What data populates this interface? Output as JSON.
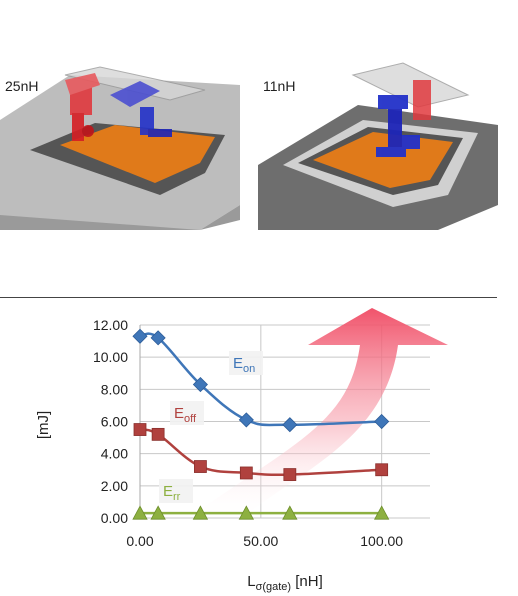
{
  "figure": {
    "left_label": "25nH",
    "right_label": "11nH"
  },
  "chart_data": {
    "type": "line",
    "xlabel_main": "L",
    "xlabel_sub": "σ(gate)",
    "xlabel_unit": " [nH]",
    "ylabel": "[mJ]",
    "xlim": [
      0,
      120
    ],
    "ylim": [
      0,
      12
    ],
    "x_ticks": [
      "0.00",
      "50.00",
      "100.00"
    ],
    "y_ticks": [
      "0.00",
      "2.00",
      "4.00",
      "6.00",
      "8.00",
      "10.00",
      "12.00"
    ],
    "grid": true,
    "series": [
      {
        "name": "E",
        "sub": "on",
        "color": "#3f76b8",
        "marker": "diamond",
        "x": [
          0,
          7.5,
          25,
          44,
          62,
          100
        ],
        "y": [
          11.3,
          11.2,
          8.3,
          6.1,
          5.8,
          6.0
        ]
      },
      {
        "name": "E",
        "sub": "off",
        "color": "#b0413e",
        "marker": "square",
        "x": [
          0,
          7.5,
          25,
          44,
          62,
          100
        ],
        "y": [
          5.5,
          5.2,
          3.2,
          2.8,
          2.7,
          3.0
        ]
      },
      {
        "name": "E",
        "sub": "rr",
        "color": "#8db040",
        "marker": "triangle",
        "x": [
          0,
          7.5,
          25,
          44,
          62,
          100
        ],
        "y": [
          0.3,
          0.3,
          0.3,
          0.3,
          0.3,
          0.3
        ]
      }
    ],
    "colors": {
      "grid": "#c8c8c8",
      "arrow": "#f0506a"
    }
  }
}
